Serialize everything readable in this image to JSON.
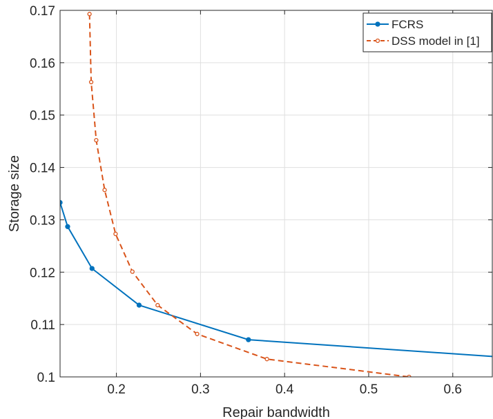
{
  "chart_data": {
    "type": "line",
    "title": "",
    "xlabel": "Repair bandwidth",
    "ylabel": "Storage size",
    "xlim": [
      0.133,
      0.647
    ],
    "ylim": [
      0.1,
      0.17
    ],
    "xticks": [
      0.2,
      0.3,
      0.4,
      0.5,
      0.6
    ],
    "xtick_labels": [
      "0.2",
      "0.3",
      "0.4",
      "0.5",
      "0.6"
    ],
    "yticks": [
      0.1,
      0.11,
      0.12,
      0.13,
      0.14,
      0.15,
      0.16,
      0.17
    ],
    "ytick_labels": [
      "0.1",
      "0.11",
      "0.12",
      "0.13",
      "0.14",
      "0.15",
      "0.16",
      "0.17"
    ],
    "grid": true,
    "legend": "top-right",
    "series": [
      {
        "name": "FCRS",
        "color": "#0072BD",
        "line_style": "solid",
        "marker": "filled-circle",
        "x": [
          0.133,
          0.142,
          0.171,
          0.227,
          0.357,
          0.647
        ],
        "y": [
          0.1333,
          0.1287,
          0.1207,
          0.1137,
          0.1071,
          0.1039
        ],
        "marker_shown": [
          true,
          true,
          true,
          true,
          true,
          false
        ]
      },
      {
        "name": "DSS model in [1]",
        "color": "#D95319",
        "line_style": "dashed",
        "marker": "open-circle",
        "x": [
          0.168,
          0.17,
          0.176,
          0.186,
          0.199,
          0.219,
          0.249,
          0.296,
          0.379,
          0.548
        ],
        "y": [
          0.1693,
          0.1563,
          0.1452,
          0.1357,
          0.1273,
          0.1201,
          0.1137,
          0.1082,
          0.1034,
          0.1
        ],
        "marker_shown": [
          true,
          true,
          true,
          true,
          true,
          true,
          true,
          true,
          true,
          true
        ]
      }
    ]
  }
}
